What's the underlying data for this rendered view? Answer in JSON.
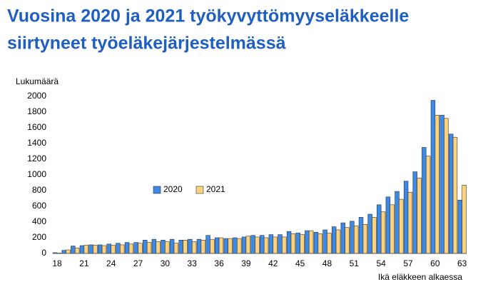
{
  "chart_data": {
    "type": "bar",
    "title": [
      "Vuosina 2020 ja 2021 työkyvyttömyyseläkkeelle",
      "siirtyneet työeläkejärjestelmässä"
    ],
    "y_label": "Lukumäärä",
    "x_label": "Ikä eläkkeen alkaessa",
    "categories": [
      "18",
      null,
      null,
      "21",
      null,
      null,
      "24",
      null,
      null,
      "27",
      null,
      null,
      "30",
      null,
      null,
      "33",
      null,
      null,
      "36",
      null,
      null,
      "39",
      null,
      null,
      "42",
      null,
      null,
      "45",
      null,
      null,
      "48",
      null,
      null,
      "51",
      null,
      null,
      "54",
      null,
      null,
      "57",
      null,
      null,
      "60",
      null,
      null,
      "63"
    ],
    "series": [
      {
        "name": "2020",
        "color": "#3d8ae6",
        "values": [
          10,
          40,
          95,
          100,
          110,
          110,
          120,
          130,
          140,
          140,
          170,
          180,
          170,
          180,
          170,
          180,
          180,
          230,
          200,
          190,
          200,
          210,
          230,
          230,
          240,
          240,
          280,
          260,
          290,
          270,
          300,
          340,
          390,
          410,
          460,
          500,
          620,
          720,
          790,
          920,
          1040,
          1350,
          1950,
          1760,
          1520,
          680
        ]
      },
      {
        "name": "2021",
        "color": "#fcd27f",
        "values": [
          5,
          45,
          70,
          105,
          105,
          100,
          105,
          110,
          120,
          130,
          140,
          150,
          150,
          130,
          170,
          150,
          170,
          180,
          200,
          190,
          190,
          220,
          210,
          200,
          210,
          210,
          250,
          240,
          290,
          250,
          260,
          300,
          330,
          350,
          370,
          460,
          530,
          620,
          690,
          780,
          960,
          1240,
          1760,
          1720,
          1480,
          870
        ]
      }
    ],
    "ylim": [
      0,
      2000
    ],
    "yticks": [
      0,
      200,
      400,
      600,
      800,
      1000,
      1200,
      1400,
      1600,
      1800,
      2000
    ],
    "grid": false,
    "legend": "center"
  }
}
